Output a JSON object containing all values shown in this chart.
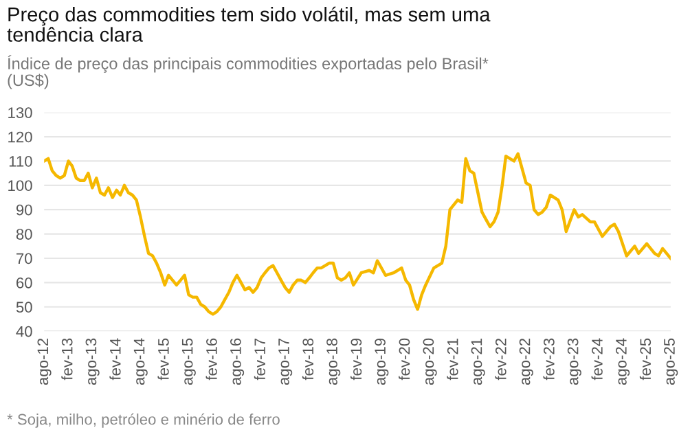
{
  "chart_data": {
    "type": "line",
    "title": "Preço das commodities tem sido volátil, mas sem uma\ntendência clara",
    "subtitle": "Índice de preço das principais commodities exportadas pelo Brasil*\n(US$)",
    "annotations": [
      "* Soja, milho, petróleo e minério de ferro"
    ],
    "x": [
      "2012-08",
      "2012-09",
      "2012-10",
      "2012-11",
      "2012-12",
      "2013-01",
      "2013-02",
      "2013-03",
      "2013-04",
      "2013-05",
      "2013-06",
      "2013-07",
      "2013-08",
      "2013-09",
      "2013-10",
      "2013-11",
      "2013-12",
      "2014-01",
      "2014-02",
      "2014-03",
      "2014-04",
      "2014-05",
      "2014-06",
      "2014-07",
      "2014-08",
      "2014-09",
      "2014-10",
      "2014-11",
      "2014-12",
      "2015-01",
      "2015-02",
      "2015-03",
      "2015-04",
      "2015-05",
      "2015-06",
      "2015-07",
      "2015-08",
      "2015-09",
      "2015-10",
      "2015-11",
      "2015-12",
      "2016-01",
      "2016-02",
      "2016-03",
      "2016-04",
      "2016-05",
      "2016-06",
      "2016-07",
      "2016-08",
      "2016-09",
      "2016-10",
      "2016-11",
      "2016-12",
      "2017-01",
      "2017-02",
      "2017-03",
      "2017-04",
      "2017-05",
      "2017-06",
      "2017-07",
      "2017-08",
      "2017-09",
      "2017-10",
      "2017-11",
      "2017-12",
      "2018-01",
      "2018-02",
      "2018-03",
      "2018-04",
      "2018-05",
      "2018-06",
      "2018-07",
      "2018-08",
      "2018-09",
      "2018-10",
      "2018-11",
      "2018-12",
      "2019-01",
      "2019-03",
      "2019-05",
      "2019-06",
      "2019-07",
      "2019-09",
      "2019-11",
      "2020-01",
      "2020-02",
      "2020-03",
      "2020-04",
      "2020-05",
      "2020-06",
      "2020-07",
      "2020-09",
      "2020-11",
      "2020-12",
      "2021-01",
      "2021-03",
      "2021-04",
      "2021-05",
      "2021-06",
      "2021-07",
      "2021-09",
      "2021-10",
      "2021-11",
      "2021-12",
      "2022-01",
      "2022-02",
      "2022-03",
      "2022-04",
      "2022-05",
      "2022-06",
      "2022-08",
      "2022-09",
      "2022-10",
      "2022-11",
      "2022-12",
      "2023-01",
      "2023-02",
      "2023-04",
      "2023-05",
      "2023-06",
      "2023-08",
      "2023-09",
      "2023-10",
      "2023-12",
      "2024-01",
      "2024-03",
      "2024-05",
      "2024-06",
      "2024-07",
      "2024-09",
      "2024-11",
      "2024-12",
      "2025-02",
      "2025-04",
      "2025-05",
      "2025-06",
      "2025-08"
    ],
    "series": [
      {
        "color": "#f5b800",
        "values": [
          110,
          111,
          106,
          104,
          103,
          104,
          110,
          108,
          103,
          102,
          102,
          105,
          99,
          103,
          97,
          96,
          99,
          95,
          98,
          96,
          100,
          97,
          96,
          94,
          87,
          79,
          72,
          71,
          68,
          64,
          59,
          63,
          61,
          59,
          61,
          63,
          55,
          54,
          54,
          51,
          50,
          48,
          47,
          48,
          50,
          53,
          56,
          60,
          63,
          60,
          57,
          58,
          56,
          58,
          62,
          64,
          66,
          67,
          64,
          61,
          58,
          56,
          59,
          61,
          61,
          60,
          62,
          64,
          66,
          66,
          67,
          68,
          68,
          62,
          61,
          62,
          64,
          59,
          64,
          65,
          64,
          69,
          63,
          64,
          66,
          61,
          59,
          53,
          49,
          55,
          59,
          66,
          68,
          75,
          90,
          94,
          93,
          111,
          106,
          105,
          89,
          86,
          83,
          85,
          89,
          100,
          112,
          111,
          110,
          113,
          101,
          100,
          90,
          88,
          89,
          91,
          96,
          94,
          90,
          81,
          90,
          87,
          88,
          85,
          85,
          79,
          83,
          84,
          81,
          71,
          75,
          72,
          76,
          72,
          71,
          74,
          70
        ]
      }
    ],
    "xlim": [
      "2012-08",
      "2025-08"
    ],
    "ylim": [
      40,
      130
    ],
    "yticks": [
      40,
      50,
      60,
      70,
      80,
      90,
      100,
      110,
      120,
      130
    ],
    "xticks": [
      {
        "value": "2012-08",
        "label": "ago-12"
      },
      {
        "value": "2013-02",
        "label": "fev-13"
      },
      {
        "value": "2013-08",
        "label": "ago-13"
      },
      {
        "value": "2014-02",
        "label": "fev-14"
      },
      {
        "value": "2014-08",
        "label": "ago-14"
      },
      {
        "value": "2015-02",
        "label": "fev-15"
      },
      {
        "value": "2015-08",
        "label": "ago-15"
      },
      {
        "value": "2016-02",
        "label": "fev-16"
      },
      {
        "value": "2016-08",
        "label": "ago-16"
      },
      {
        "value": "2017-02",
        "label": "fev-17"
      },
      {
        "value": "2017-08",
        "label": "ago-17"
      },
      {
        "value": "2018-02",
        "label": "fev-18"
      },
      {
        "value": "2018-08",
        "label": "ago-18"
      },
      {
        "value": "2019-02",
        "label": "fev-19"
      },
      {
        "value": "2019-08",
        "label": "ago-19"
      },
      {
        "value": "2020-02",
        "label": "fev-20"
      },
      {
        "value": "2020-08",
        "label": "ago-20"
      },
      {
        "value": "2021-02",
        "label": "fev-21"
      },
      {
        "value": "2021-08",
        "label": "ago-21"
      },
      {
        "value": "2022-02",
        "label": "fev-22"
      },
      {
        "value": "2022-08",
        "label": "ago-22"
      },
      {
        "value": "2023-02",
        "label": "fev-23"
      },
      {
        "value": "2023-08",
        "label": "ago-23"
      },
      {
        "value": "2024-02",
        "label": "fev-24"
      },
      {
        "value": "2024-08",
        "label": "ago-24"
      },
      {
        "value": "2025-02",
        "label": "fev-25"
      },
      {
        "value": "2025-08",
        "label": "ago-25"
      }
    ],
    "grid": "y",
    "marker": "none",
    "line_style": "solid"
  }
}
